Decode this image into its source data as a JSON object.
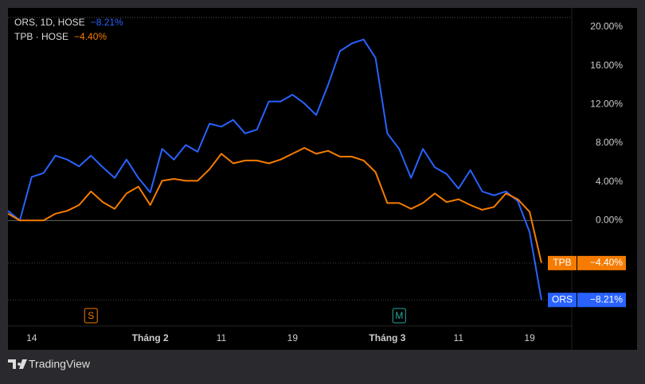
{
  "chart_data": {
    "type": "line",
    "categories": [
      null,
      null,
      "14",
      null,
      null,
      null,
      null,
      null,
      null,
      null,
      null,
      null,
      "Tháng 2",
      null,
      null,
      null,
      null,
      null,
      "11",
      null,
      null,
      null,
      null,
      null,
      "19",
      null,
      null,
      null,
      null,
      null,
      null,
      null,
      "Tháng 3",
      null,
      null,
      null,
      null,
      null,
      "11",
      null,
      null,
      null,
      null,
      null,
      "19",
      null
    ],
    "series": [
      {
        "name": "ORS",
        "legend": "ORS, 1D, HOSE",
        "last_label": "−8.21%",
        "color": "#2962ff",
        "values": [
          1.0,
          0,
          4.5,
          4.9,
          6.7,
          6.3,
          5.6,
          6.7,
          5.5,
          4.4,
          6.3,
          4.4,
          2.9,
          7.4,
          6.3,
          7.8,
          7.1,
          10.0,
          9.7,
          10.4,
          9.0,
          9.4,
          12.3,
          12.3,
          13.0,
          12.1,
          10.9,
          14.0,
          17.5,
          18.3,
          18.7,
          16.8,
          9.0,
          7.4,
          4.4,
          7.4,
          5.5,
          4.8,
          3.3,
          5.2,
          3.0,
          2.6,
          3.0,
          2.0,
          -1.2,
          -8.21
        ]
      },
      {
        "name": "TPB",
        "legend": "TPB · HOSE",
        "last_label": "−4.40%",
        "color": "#f57c00",
        "values": [
          0.7,
          0,
          0,
          0,
          0.7,
          1.0,
          1.6,
          3.0,
          1.9,
          1.2,
          2.8,
          3.5,
          1.6,
          4.1,
          4.3,
          4.1,
          4.1,
          5.3,
          6.9,
          5.9,
          6.2,
          6.2,
          5.9,
          6.3,
          6.9,
          7.5,
          6.9,
          7.2,
          6.6,
          6.6,
          6.2,
          5.0,
          1.8,
          1.8,
          1.2,
          1.8,
          2.8,
          1.9,
          2.2,
          1.6,
          1.1,
          1.4,
          2.8,
          2.2,
          0.9,
          -4.4
        ]
      }
    ],
    "ylim": [
      -10.9,
      21.8
    ],
    "yticks": [
      {
        "value": 0,
        "label": "0.00%"
      },
      {
        "value": 4,
        "label": "4.00%"
      },
      {
        "value": 8,
        "label": "8.00%"
      },
      {
        "value": 12,
        "label": "12.00%"
      },
      {
        "value": 16,
        "label": "16.00%"
      },
      {
        "value": 20,
        "label": "20.00%"
      }
    ],
    "events": [
      {
        "label": "S",
        "index": 7,
        "color": "#f57c00"
      },
      {
        "label": "M",
        "index": 33,
        "color": "#26a69a"
      }
    ],
    "brand": "TradingView"
  }
}
